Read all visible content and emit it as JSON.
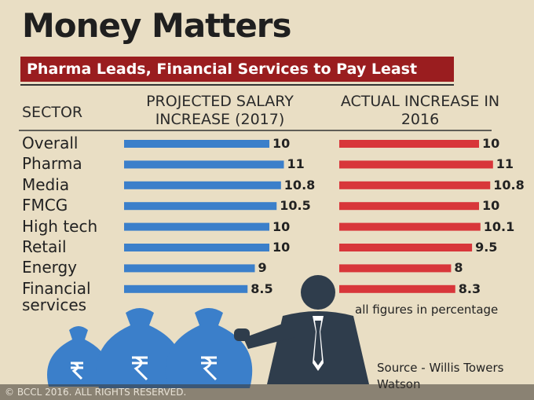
{
  "chart_data": {
    "type": "bar",
    "title": "Money Matters",
    "subtitle": "Pharma Leads, Financial Services to Pay Least",
    "category_header": "SECTOR",
    "categories": [
      "Overall",
      "Pharma",
      "Media",
      "FMCG",
      "High tech",
      "Retail",
      "Energy",
      "Financial services"
    ],
    "series": [
      {
        "name": "PROJECTED SALARY INCREASE (2017)",
        "color": "#3b7fca",
        "values": [
          10,
          11,
          10.8,
          10.5,
          10,
          10,
          9,
          8.5
        ]
      },
      {
        "name": "ACTUAL INCREASE IN 2016",
        "color": "#d8363a",
        "values": [
          10,
          11,
          10.8,
          10,
          10.1,
          9.5,
          8,
          8.3
        ]
      }
    ],
    "note": "all figures in percentage",
    "source": "Source - Willis Towers Watson",
    "copyright": "© BCCL 2016. ALL RIGHTS RESERVED."
  }
}
